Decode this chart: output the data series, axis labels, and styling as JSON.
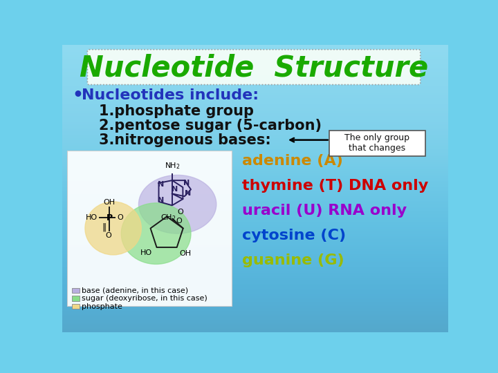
{
  "title": "Nucleotide  Structure",
  "title_color": "#1aaa00",
  "title_fontsize": 30,
  "bg_color": "#6dd0ec",
  "bullet_text": "Nucleotides include:",
  "bullet_color": "#2233bb",
  "bullet_fontsize": 16,
  "items": [
    "1.phosphate group",
    "2.pentose sugar (5-carbon)",
    "3.nitrogenous bases:"
  ],
  "item_color": "#111111",
  "item_fontsize": 15,
  "bases": [
    {
      "text": "adenine (A)",
      "color": "#cc8800"
    },
    {
      "text": "thymine (T) DNA only",
      "color": "#cc0000"
    },
    {
      "text": "uracil (U) RNA only",
      "color": "#9900cc"
    },
    {
      "text": "cytosine (C)",
      "color": "#0044cc"
    },
    {
      "text": "guanine (G)",
      "color": "#99bb00"
    }
  ],
  "bases_fontsize": 15,
  "annotation_text": "The only group\nthat changes",
  "annotation_box_color": "#ffffff",
  "annotation_text_color": "#111111",
  "title_box_color": "#f8fff8",
  "title_box_edge": "#bbbbbb",
  "diagram_box_color": "#ffffff",
  "base_circle_color": "#b8aee0",
  "sugar_circle_color": "#88dd88",
  "phosphate_circle_color": "#f0d888",
  "legend_items": [
    {
      "label": "base (adenine, in this case)",
      "color": "#b8aee0"
    },
    {
      "label": "sugar (deoxyribose, in this case)",
      "color": "#88dd88"
    },
    {
      "label": "phosphate",
      "color": "#f0d888"
    }
  ]
}
